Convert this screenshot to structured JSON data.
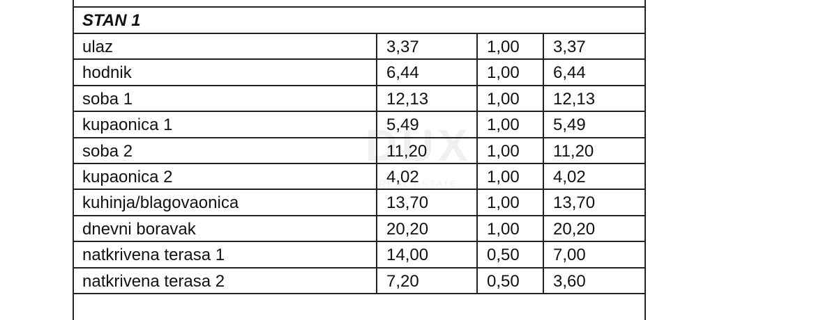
{
  "header": {
    "title": "STAN 1"
  },
  "table": {
    "rows": [
      [
        "ulaz",
        "3,37",
        "1,00",
        "3,37"
      ],
      [
        "hodnik",
        "6,44",
        "1,00",
        "6,44"
      ],
      [
        "soba 1",
        "12,13",
        "1,00",
        "12,13"
      ],
      [
        "kupaonica 1",
        "5,49",
        "1,00",
        "5,49"
      ],
      [
        "soba 2",
        "11,20",
        "1,00",
        "11,20"
      ],
      [
        "kupaonica 2",
        "4,02",
        "1,00",
        "4,02"
      ],
      [
        "kuhinja/blagovaonica",
        "13,70",
        "1,00",
        "13,70"
      ],
      [
        "dnevni boravak",
        "20,20",
        "1,00",
        "20,20"
      ],
      [
        "natkrivena terasa 1",
        "14,00",
        "0,50",
        "7,00"
      ],
      [
        "natkrivena terasa 2",
        "7,20",
        "0,50",
        "3,60"
      ]
    ]
  },
  "watermark": {
    "logo": "DUX",
    "tagline": "REAL ESTATE"
  }
}
